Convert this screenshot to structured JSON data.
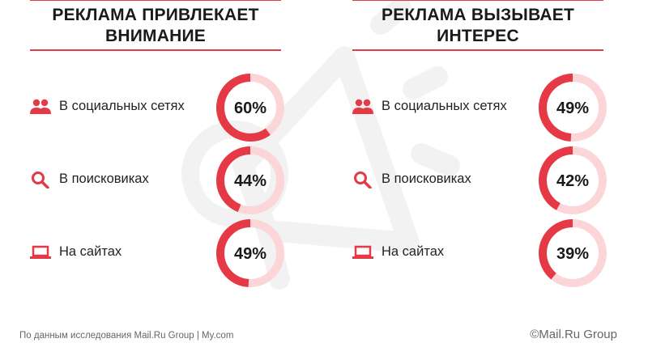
{
  "colors": {
    "accent": "#e63946",
    "track": "#fbd5d8"
  },
  "panels": [
    {
      "title_line1": "РЕКЛАМА ПРИВЛЕКАЕТ",
      "title_line2": "ВНИМАНИЕ",
      "rows": [
        {
          "icon": "people-icon",
          "label": "В социальных сетях",
          "value": 60,
          "display": "60%"
        },
        {
          "icon": "search-icon",
          "label": "В поисковиках",
          "value": 44,
          "display": "44%"
        },
        {
          "icon": "laptop-icon",
          "label": "На сайтах",
          "value": 49,
          "display": "49%"
        }
      ]
    },
    {
      "title_line1": "РЕКЛАМА ВЫЗЫВАЕТ",
      "title_line2": "ИНТЕРЕС",
      "rows": [
        {
          "icon": "people-icon",
          "label": "В социальных сетях",
          "value": 49,
          "display": "49%"
        },
        {
          "icon": "search-icon",
          "label": "В поисковиках",
          "value": 42,
          "display": "42%"
        },
        {
          "icon": "laptop-icon",
          "label": "На сайтах",
          "value": 39,
          "display": "39%"
        }
      ]
    }
  ],
  "chart_data": [
    {
      "type": "pie",
      "title": "РЕКЛАМА ПРИВЛЕКАЕТ ВНИМАНИЕ",
      "categories": [
        "В социальных сетях",
        "В поисковиках",
        "На сайтах"
      ],
      "values": [
        60,
        44,
        49
      ]
    },
    {
      "type": "pie",
      "title": "РЕКЛАМА ВЫЗЫВАЕТ ИНТЕРЕС",
      "categories": [
        "В социальных сетях",
        "В поисковиках",
        "На сайтах"
      ],
      "values": [
        49,
        42,
        39
      ]
    }
  ],
  "footer": {
    "source": "По данным исследования Mail.Ru Group | My.com",
    "copyright": "©Mail.Ru Group"
  }
}
